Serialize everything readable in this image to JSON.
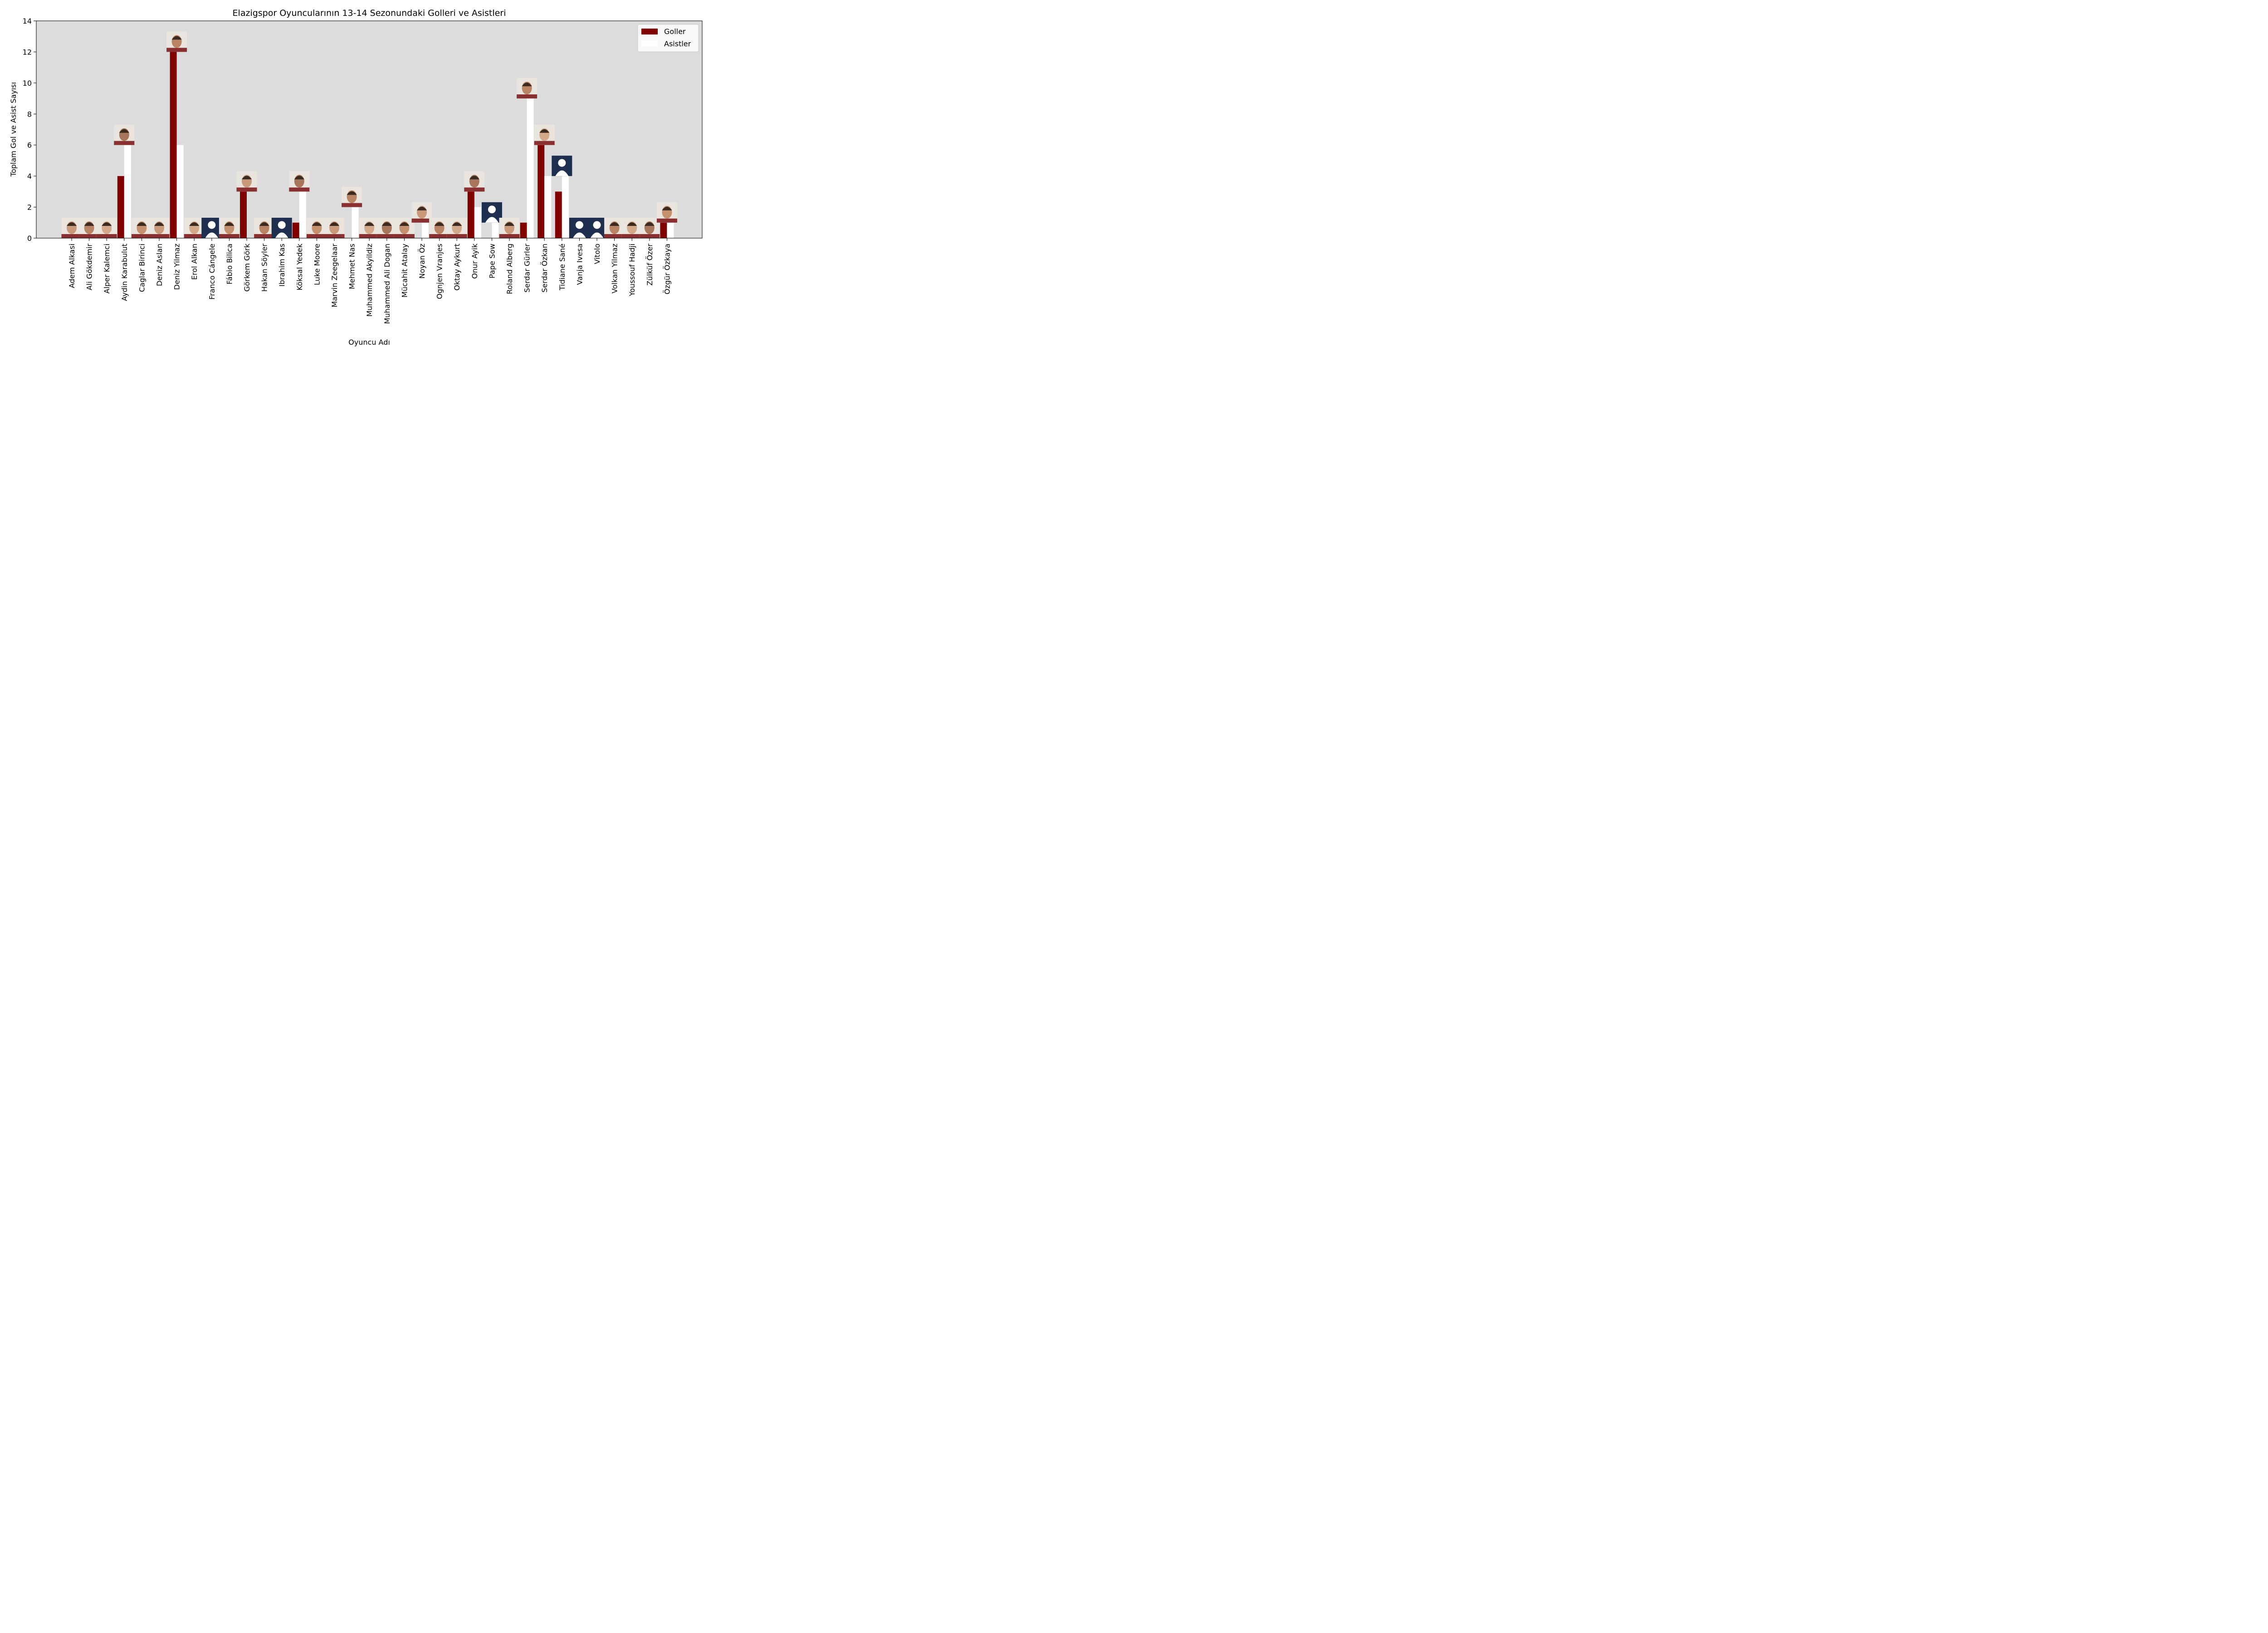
{
  "chart_data": {
    "type": "bar",
    "title": "Elazigspor Oyuncularının 13-14 Sezonundaki Golleri ve Asistleri",
    "xlabel": "Oyuncu Adı",
    "ylabel": "Toplam Gol ve Asist Sayısı",
    "ylim": [
      0,
      14
    ],
    "yticks": [
      0,
      2,
      4,
      6,
      8,
      10,
      12,
      14
    ],
    "legend_position": "top-right",
    "colors": {
      "plot_bg": "#dcdcdc",
      "goals": "#800000",
      "assists": "#ffffff"
    },
    "categories": [
      "Adem Alkasi",
      "Ali Gökdemir",
      "Alper Kalemci",
      "Aydin Karabulut",
      "Caglar Birinci",
      "Deniz Aslan",
      "Deniz Yilmaz",
      "Erol Alkan",
      "Franco Cángele",
      "Fábio Bilica",
      "Görkem Görk",
      "Hakan Söyler",
      "Ibrahim Kas",
      "Köksal Yedek",
      "Luke Moore",
      "Marvin Zeegelaar",
      "Mehmet Nas",
      "Muhammed Akyildiz",
      "Muhammed Ali Dogan",
      "Mücahit Atalay",
      "Noyan Öz",
      "Ognjen Vranjes",
      "Oktay Aykurt",
      "Onur Ayik",
      "Pape Sow",
      "Roland Alberg",
      "Serdar Gürler",
      "Serdar Özkan",
      "Tidiane Sané",
      "Vanja Ivesa",
      "Vitolo",
      "Volkan Yilmaz",
      "Youssouf Hadji",
      "Zülküf Özer",
      "Özgür Özkaya"
    ],
    "series": [
      {
        "name": "Goller",
        "values": [
          0,
          0,
          0,
          4,
          0,
          0,
          12,
          0,
          0,
          0,
          3,
          0,
          0,
          1,
          0,
          0,
          0,
          0,
          0,
          0,
          0,
          0,
          0,
          3,
          0,
          0,
          1,
          6,
          3,
          0,
          0,
          0,
          0,
          0,
          1
        ]
      },
      {
        "name": "Asistler",
        "values": [
          0,
          0,
          0,
          6,
          0,
          0,
          6,
          0,
          0,
          0,
          0,
          0,
          0,
          3,
          0,
          0,
          2,
          0,
          0,
          0,
          1,
          0,
          0,
          2,
          1,
          0,
          9,
          4,
          4,
          0,
          0,
          0,
          0,
          0,
          1
        ]
      }
    ],
    "player_photos": [
      "photo-icon",
      "photo-icon",
      "photo-icon",
      "photo-icon",
      "photo-icon",
      "photo-icon",
      "photo-icon",
      "photo-icon",
      "silhouette-icon",
      "photo-icon",
      "photo-icon",
      "photo-icon",
      "silhouette-icon",
      "photo-icon",
      "photo-icon",
      "photo-icon",
      "photo-icon",
      "photo-icon",
      "photo-icon",
      "photo-icon",
      "photo-icon",
      "photo-icon",
      "photo-icon",
      "photo-icon",
      "silhouette-icon",
      "photo-icon",
      "photo-icon",
      "photo-icon",
      "silhouette-icon",
      "silhouette-icon",
      "silhouette-icon",
      "photo-icon",
      "photo-icon",
      "photo-icon",
      "photo-icon"
    ]
  }
}
